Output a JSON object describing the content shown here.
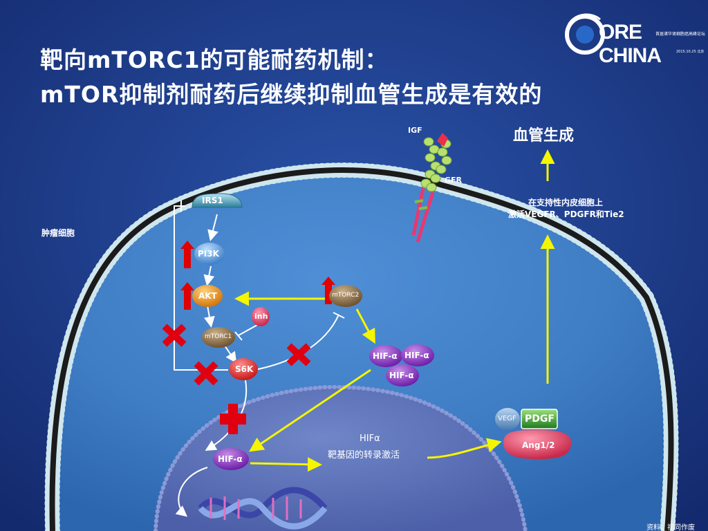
{
  "slide": {
    "title_line1": "靶向mTORC1的可能耐药机制：",
    "title_line2": "mTOR抑制剂耐药后继续抑制血管生成是有效的",
    "logo_brand": "ORE CHINA",
    "logo_tagline": "首届诸华肾细胞癌高峰论坛",
    "logo_date": "2015.10.25 北京",
    "footer_note": "资料，视同作废"
  },
  "diagram": {
    "tumor_cell_label": "肿瘤细胞",
    "receptor_ligand": "IGF",
    "receptor_label": "GFR",
    "angiogenesis_label": "血管生成",
    "endothelial_line1": "在支持性内皮细胞上",
    "endothelial_line2": "激活VEGFR、PDGFR和Tie2",
    "transcription_line1": "HIFα",
    "transcription_line2": "靶基因的转录激活",
    "nodes": {
      "irs1": "IRS1",
      "pi3k": "PI3K",
      "akt": "AKT",
      "mtorc1": "mTORC1",
      "mtorc2": "mTORC2",
      "s6k": "S6K",
      "inh": "inh",
      "hif_a": "HIF-α",
      "vegf": "VEGF",
      "pdgf": "PDGF",
      "ang": "Ang1/2"
    },
    "colors": {
      "background": "#1e3c8c",
      "membrane_dot": "#cfe6ee",
      "membrane_core": "#1b1b1b",
      "arrow_yellow": "#f5f500",
      "arrow_red": "#e00000",
      "block_red": "#e00010"
    }
  }
}
